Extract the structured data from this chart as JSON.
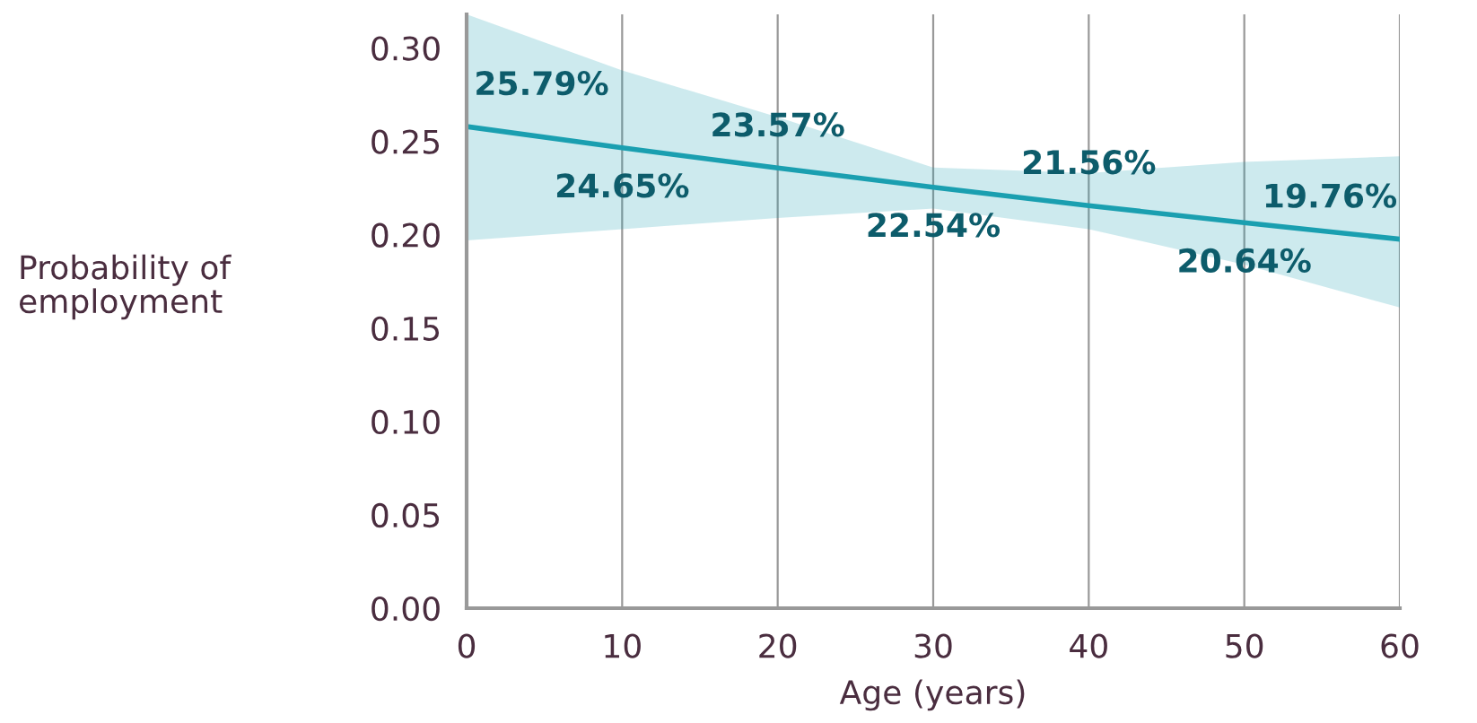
{
  "chart_data": {
    "type": "line",
    "xlabel": "Age (years)",
    "ylabel": "Probability of\nemployment",
    "categories": [
      "0",
      "10",
      "20",
      "30",
      "40",
      "50",
      "60"
    ],
    "series": [
      {
        "color": "#1a9fb0",
        "values": [
          0.2579,
          0.2465,
          0.2357,
          0.2254,
          0.2156,
          0.2064,
          0.1976
        ],
        "lower": [
          0.197,
          0.203,
          0.209,
          0.214,
          0.203,
          0.184,
          0.161
        ],
        "upper": [
          0.318,
          0.288,
          0.263,
          0.236,
          0.233,
          0.239,
          0.242
        ],
        "value_labels": [
          "25.79%",
          "24.65%",
          "23.57%",
          "22.54%",
          "21.56%",
          "20.64%",
          "19.76%"
        ]
      }
    ],
    "ylim": [
      0,
      0.318
    ],
    "yticks": [
      {
        "value": 0,
        "label": "0.00"
      },
      {
        "value": 0.05,
        "label": "0.05"
      },
      {
        "value": 0.1,
        "label": "0.10"
      },
      {
        "value": 0.15,
        "label": "0.15"
      },
      {
        "value": 0.2,
        "label": "0.20"
      },
      {
        "value": 0.25,
        "label": "0.25"
      },
      {
        "value": 0.3,
        "label": "0.30"
      }
    ],
    "grid": "x",
    "legend": false,
    "marker": "none",
    "line_style": "solid"
  }
}
